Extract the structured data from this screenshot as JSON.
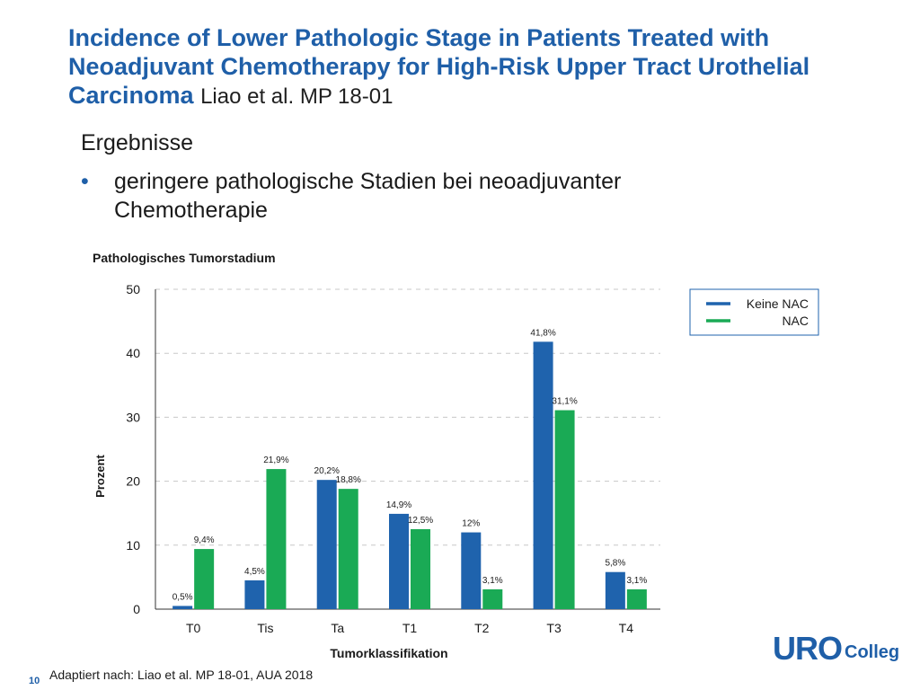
{
  "slide": {
    "title_main": "Incidence of Lower Pathologic Stage in Patients Treated with Neoadjuvant Chemotherapy for High-Risk Upper Tract Urothelial Carcinoma",
    "title_ref": "Liao et al. MP 18-01",
    "subheading": "Ergebnisse",
    "bullet_symbol": "•",
    "bullet_text": "geringere pathologische Stadien bei neoadjuvanter Chemotherapie",
    "footer": "Adaptiert nach: Liao et al. MP 18-01, AUA 2018",
    "page_number": "10",
    "logo": {
      "uro": "URO",
      "colleg": "Colleg"
    }
  },
  "chart_data": {
    "type": "bar",
    "title": "Pathologisches Tumorstadium",
    "xlabel": "Tumorklassifikation",
    "ylabel": "Prozent",
    "ylim": [
      0,
      50
    ],
    "yticks": [
      0,
      10,
      20,
      30,
      40,
      50
    ],
    "grid": true,
    "legend_position": "top-right",
    "categories": [
      "T0",
      "Tis",
      "Ta",
      "T1",
      "T2",
      "T3",
      "T4"
    ],
    "series": [
      {
        "name": "Keine NAC",
        "color": "#1f63ad",
        "values": [
          0.5,
          4.5,
          20.2,
          14.9,
          12,
          41.8,
          5.8
        ],
        "labels": [
          "0,5%",
          "4,5%",
          "20,2%",
          "14,9%",
          "12%",
          "41,8%",
          "5,8%"
        ]
      },
      {
        "name": "NAC",
        "color": "#1aaa55",
        "values": [
          9.4,
          21.9,
          18.8,
          12.5,
          3.1,
          31.1,
          3.1
        ],
        "labels": [
          "9,4%",
          "21,9%",
          "18,8%",
          "12,5%",
          "3,1%",
          "31,1%",
          "3,1%"
        ]
      }
    ]
  }
}
